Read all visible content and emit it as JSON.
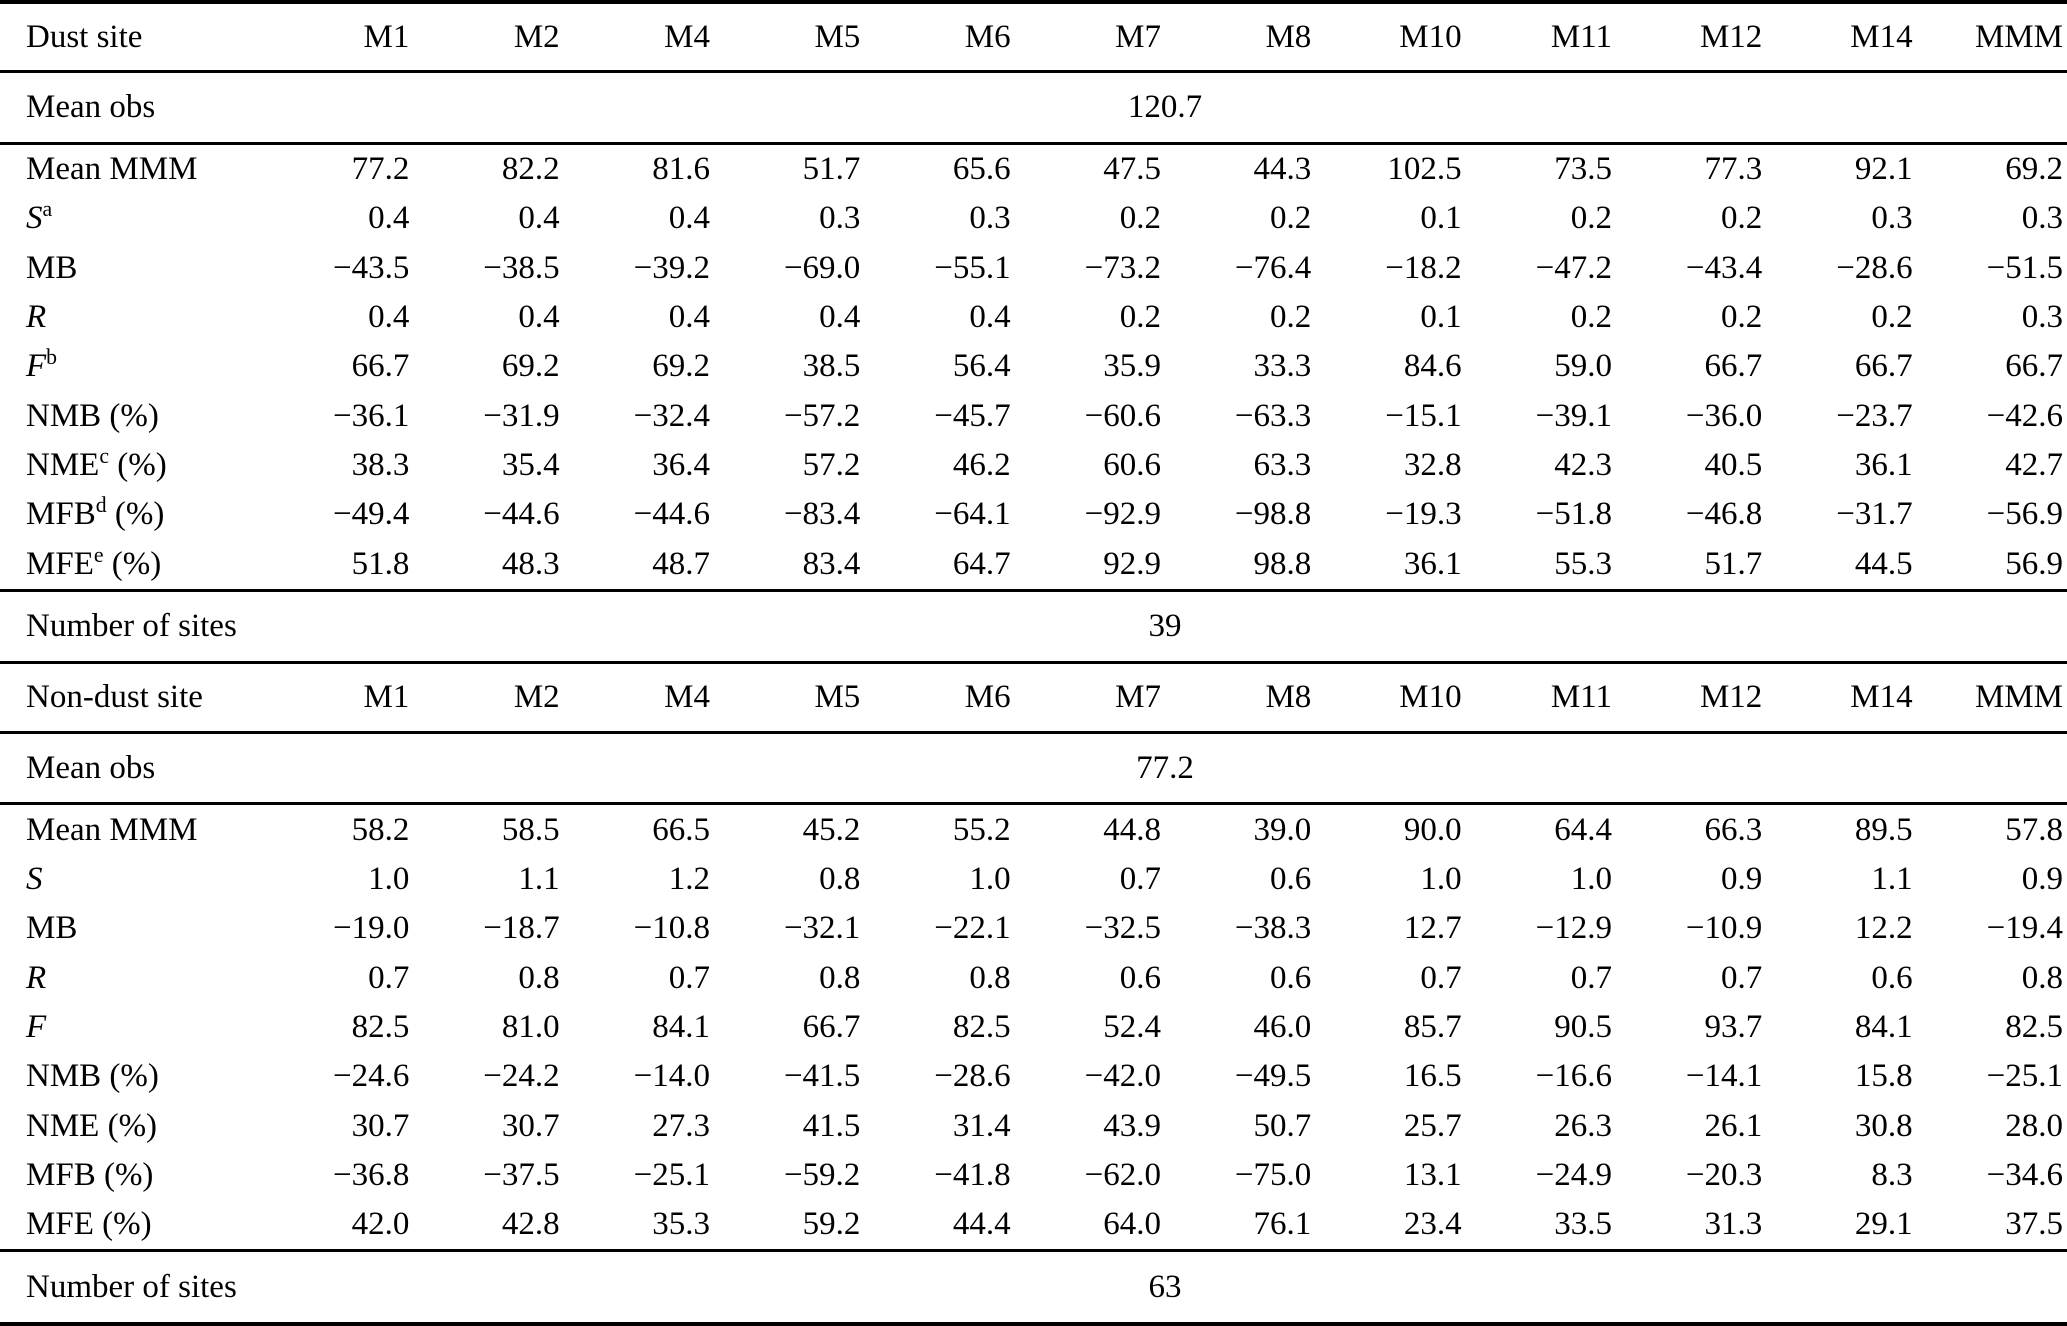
{
  "columns": [
    "M1",
    "M2",
    "M4",
    "M5",
    "M6",
    "M7",
    "M8",
    "M10",
    "M11",
    "M12",
    "M14",
    "MMM"
  ],
  "sections": [
    {
      "site_type_label": "Dust site",
      "mean_obs": {
        "label": "Mean obs",
        "value": "120.7"
      },
      "rows": [
        {
          "label": "Mean MMM",
          "italic": false,
          "sup": "",
          "suffix": "",
          "values": [
            "77.2",
            "82.2",
            "81.6",
            "51.7",
            "65.6",
            "47.5",
            "44.3",
            "102.5",
            "73.5",
            "77.3",
            "92.1",
            "69.2"
          ]
        },
        {
          "label": "S",
          "italic": true,
          "sup": "a",
          "suffix": "",
          "values": [
            "0.4",
            "0.4",
            "0.4",
            "0.3",
            "0.3",
            "0.2",
            "0.2",
            "0.1",
            "0.2",
            "0.2",
            "0.3",
            "0.3"
          ]
        },
        {
          "label": "MB",
          "italic": false,
          "sup": "",
          "suffix": "",
          "values": [
            "−43.5",
            "−38.5",
            "−39.2",
            "−69.0",
            "−55.1",
            "−73.2",
            "−76.4",
            "−18.2",
            "−47.2",
            "−43.4",
            "−28.6",
            "−51.5"
          ]
        },
        {
          "label": "R",
          "italic": true,
          "sup": "",
          "suffix": "",
          "values": [
            "0.4",
            "0.4",
            "0.4",
            "0.4",
            "0.4",
            "0.2",
            "0.2",
            "0.1",
            "0.2",
            "0.2",
            "0.2",
            "0.3"
          ]
        },
        {
          "label": "F",
          "italic": true,
          "sup": "b",
          "suffix": "",
          "values": [
            "66.7",
            "69.2",
            "69.2",
            "38.5",
            "56.4",
            "35.9",
            "33.3",
            "84.6",
            "59.0",
            "66.7",
            "66.7",
            "66.7"
          ]
        },
        {
          "label": "NMB",
          "italic": false,
          "sup": "",
          "suffix": "(%)",
          "values": [
            "−36.1",
            "−31.9",
            "−32.4",
            "−57.2",
            "−45.7",
            "−60.6",
            "−63.3",
            "−15.1",
            "−39.1",
            "−36.0",
            "−23.7",
            "−42.6"
          ]
        },
        {
          "label": "NME",
          "italic": false,
          "sup": "c",
          "suffix": "(%)",
          "values": [
            "38.3",
            "35.4",
            "36.4",
            "57.2",
            "46.2",
            "60.6",
            "63.3",
            "32.8",
            "42.3",
            "40.5",
            "36.1",
            "42.7"
          ]
        },
        {
          "label": "MFB",
          "italic": false,
          "sup": "d",
          "suffix": "(%)",
          "values": [
            "−49.4",
            "−44.6",
            "−44.6",
            "−83.4",
            "−64.1",
            "−92.9",
            "−98.8",
            "−19.3",
            "−51.8",
            "−46.8",
            "−31.7",
            "−56.9"
          ]
        },
        {
          "label": "MFE",
          "italic": false,
          "sup": "e",
          "suffix": "(%)",
          "values": [
            "51.8",
            "48.3",
            "48.7",
            "83.4",
            "64.7",
            "92.9",
            "98.8",
            "36.1",
            "55.3",
            "51.7",
            "44.5",
            "56.9"
          ]
        }
      ],
      "num_sites": {
        "label": "Number of sites",
        "value": "39"
      }
    },
    {
      "site_type_label": "Non-dust site",
      "mean_obs": {
        "label": "Mean obs",
        "value": "77.2"
      },
      "rows": [
        {
          "label": "Mean MMM",
          "italic": false,
          "sup": "",
          "suffix": "",
          "values": [
            "58.2",
            "58.5",
            "66.5",
            "45.2",
            "55.2",
            "44.8",
            "39.0",
            "90.0",
            "64.4",
            "66.3",
            "89.5",
            "57.8"
          ]
        },
        {
          "label": "S",
          "italic": true,
          "sup": "",
          "suffix": "",
          "values": [
            "1.0",
            "1.1",
            "1.2",
            "0.8",
            "1.0",
            "0.7",
            "0.6",
            "1.0",
            "1.0",
            "0.9",
            "1.1",
            "0.9"
          ]
        },
        {
          "label": "MB",
          "italic": false,
          "sup": "",
          "suffix": "",
          "values": [
            "−19.0",
            "−18.7",
            "−10.8",
            "−32.1",
            "−22.1",
            "−32.5",
            "−38.3",
            "12.7",
            "−12.9",
            "−10.9",
            "12.2",
            "−19.4"
          ]
        },
        {
          "label": "R",
          "italic": true,
          "sup": "",
          "suffix": "",
          "values": [
            "0.7",
            "0.8",
            "0.7",
            "0.8",
            "0.8",
            "0.6",
            "0.6",
            "0.7",
            "0.7",
            "0.7",
            "0.6",
            "0.8"
          ]
        },
        {
          "label": "F",
          "italic": true,
          "sup": "",
          "suffix": "",
          "values": [
            "82.5",
            "81.0",
            "84.1",
            "66.7",
            "82.5",
            "52.4",
            "46.0",
            "85.7",
            "90.5",
            "93.7",
            "84.1",
            "82.5"
          ]
        },
        {
          "label": "NMB",
          "italic": false,
          "sup": "",
          "suffix": "(%)",
          "values": [
            "−24.6",
            "−24.2",
            "−14.0",
            "−41.5",
            "−28.6",
            "−42.0",
            "−49.5",
            "16.5",
            "−16.6",
            "−14.1",
            "15.8",
            "−25.1"
          ]
        },
        {
          "label": "NME",
          "italic": false,
          "sup": "",
          "suffix": "(%)",
          "values": [
            "30.7",
            "30.7",
            "27.3",
            "41.5",
            "31.4",
            "43.9",
            "50.7",
            "25.7",
            "26.3",
            "26.1",
            "30.8",
            "28.0"
          ]
        },
        {
          "label": "MFB",
          "italic": false,
          "sup": "",
          "suffix": "(%)",
          "values": [
            "−36.8",
            "−37.5",
            "−25.1",
            "−59.2",
            "−41.8",
            "−62.0",
            "−75.0",
            "13.1",
            "−24.9",
            "−20.3",
            "8.3",
            "−34.6"
          ]
        },
        {
          "label": "MFE",
          "italic": false,
          "sup": "",
          "suffix": "(%)",
          "values": [
            "42.0",
            "42.8",
            "35.3",
            "59.2",
            "44.4",
            "64.0",
            "76.1",
            "23.4",
            "33.5",
            "31.3",
            "29.1",
            "37.5"
          ]
        }
      ],
      "num_sites": {
        "label": "Number of sites",
        "value": "63"
      }
    }
  ]
}
